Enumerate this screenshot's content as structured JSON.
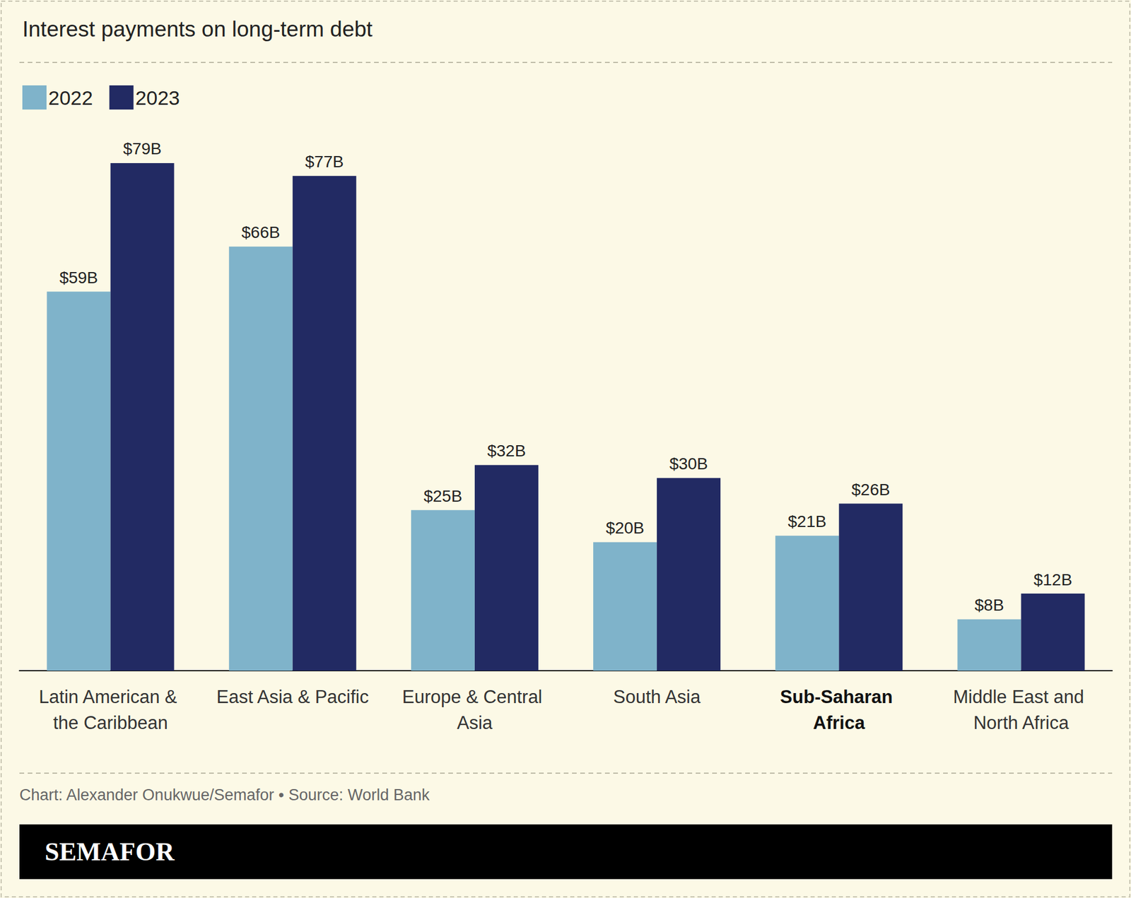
{
  "chart_data": {
    "type": "bar",
    "title": "Interest payments on long-term debt",
    "categories": [
      "Latin American & the Caribbean",
      "East Asia & Pacific",
      "Europe & Central Asia",
      "South Asia",
      "Sub-Saharan Africa",
      "Middle East and North Africa"
    ],
    "series": [
      {
        "name": "2022",
        "color": "#7fb3ca",
        "values": [
          59,
          66,
          25,
          20,
          21,
          8
        ],
        "value_labels": [
          "$59B",
          "$66B",
          "$25B",
          "$20B",
          "$21B",
          "$8B"
        ]
      },
      {
        "name": "2023",
        "color": "#222a63",
        "values": [
          79,
          77,
          32,
          30,
          26,
          12
        ],
        "value_labels": [
          "$79B",
          "$77B",
          "$32B",
          "$30B",
          "$26B",
          "$12B"
        ]
      }
    ],
    "ylim": [
      0,
      80
    ],
    "grid": false,
    "legend": "top-left",
    "data_labels": true,
    "tick_labels": "x",
    "source": "Chart: Alexander Onukwue/Semafor • Source: World Bank",
    "brand": "SEMAFOR"
  }
}
